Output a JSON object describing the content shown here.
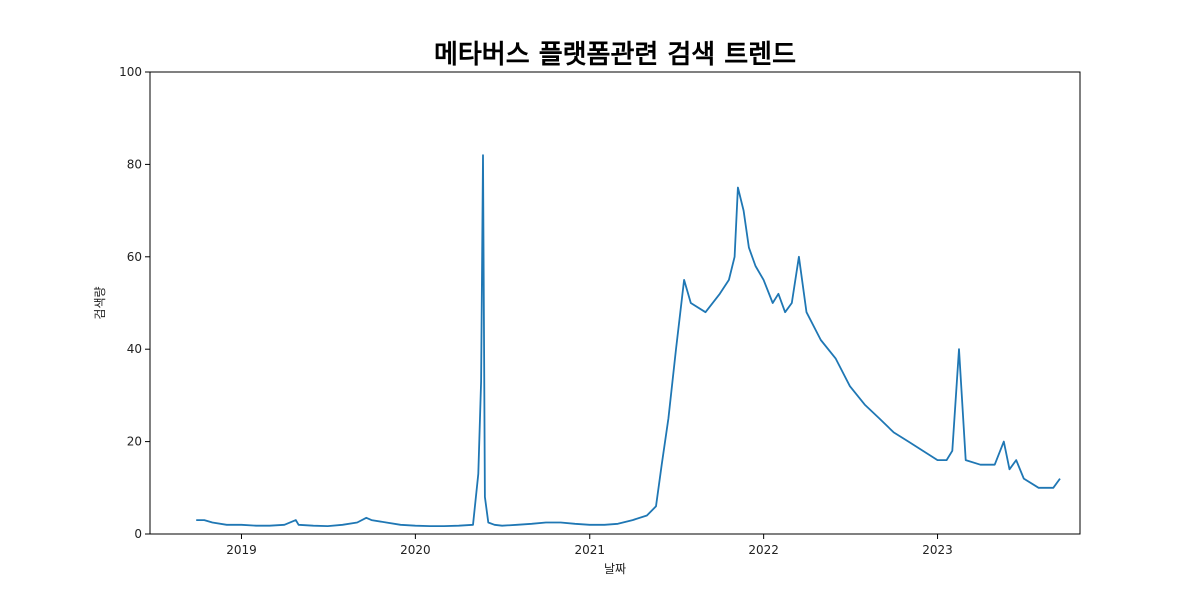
{
  "chart_data": {
    "type": "line",
    "title": "메타버스 플랫폼관련 검색 트렌드",
    "xlabel": "날짜",
    "ylabel": "검색량",
    "xlim": [
      "2018-06-23",
      "2023-10-27"
    ],
    "ylim": [
      0,
      100
    ],
    "x_ticks": [
      {
        "date": "2019-01-01",
        "label": "2019"
      },
      {
        "date": "2020-01-01",
        "label": "2020"
      },
      {
        "date": "2021-01-01",
        "label": "2021"
      },
      {
        "date": "2022-01-01",
        "label": "2022"
      },
      {
        "date": "2023-01-01",
        "label": "2023"
      }
    ],
    "y_ticks": [
      0,
      20,
      40,
      60,
      80,
      100
    ],
    "grid": false,
    "series": [
      {
        "color": "#1f77b4",
        "x": [
          "2018-09-28",
          "2018-10-15",
          "2018-11-01",
          "2018-12-01",
          "2019-01-01",
          "2019-02-01",
          "2019-03-01",
          "2019-04-01",
          "2019-04-25",
          "2019-05-01",
          "2019-06-01",
          "2019-07-01",
          "2019-08-01",
          "2019-09-01",
          "2019-09-20",
          "2019-10-01",
          "2019-11-01",
          "2019-12-01",
          "2020-01-01",
          "2020-02-01",
          "2020-03-01",
          "2020-04-01",
          "2020-05-01",
          "2020-05-12",
          "2020-05-18",
          "2020-05-22",
          "2020-05-26",
          "2020-06-02",
          "2020-06-15",
          "2020-07-01",
          "2020-08-01",
          "2020-09-01",
          "2020-10-01",
          "2020-11-01",
          "2020-12-01",
          "2021-01-01",
          "2021-02-01",
          "2021-03-01",
          "2021-04-01",
          "2021-05-01",
          "2021-05-20",
          "2021-06-01",
          "2021-06-15",
          "2021-07-01",
          "2021-07-18",
          "2021-08-01",
          "2021-09-01",
          "2021-10-01",
          "2021-10-20",
          "2021-11-01",
          "2021-11-08",
          "2021-11-20",
          "2021-12-01",
          "2021-12-15",
          "2022-01-01",
          "2022-01-20",
          "2022-02-01",
          "2022-02-15",
          "2022-03-01",
          "2022-03-16",
          "2022-04-01",
          "2022-05-01",
          "2022-06-01",
          "2022-07-01",
          "2022-08-01",
          "2022-09-01",
          "2022-10-01",
          "2022-11-01",
          "2022-12-01",
          "2023-01-01",
          "2023-01-20",
          "2023-02-01",
          "2023-02-15",
          "2023-03-01",
          "2023-04-01",
          "2023-05-01",
          "2023-05-20",
          "2023-06-01",
          "2023-06-15",
          "2023-07-01",
          "2023-08-01",
          "2023-09-01",
          "2023-09-15"
        ],
        "y": [
          3,
          3,
          2.5,
          2,
          2,
          1.8,
          1.8,
          2,
          3,
          2,
          1.8,
          1.7,
          2,
          2.5,
          3.5,
          3,
          2.5,
          2,
          1.8,
          1.7,
          1.7,
          1.8,
          2,
          13,
          33,
          82,
          8,
          2.5,
          2,
          1.8,
          2,
          2.2,
          2.5,
          2.5,
          2.2,
          2,
          2,
          2.2,
          3,
          4,
          6,
          15,
          25,
          40,
          55,
          50,
          48,
          52,
          55,
          60,
          75,
          70,
          62,
          58,
          55,
          50,
          52,
          48,
          50,
          60,
          48,
          42,
          38,
          32,
          28,
          25,
          22,
          20,
          18,
          16,
          16,
          18,
          40,
          16,
          15,
          15,
          20,
          14,
          16,
          12,
          10,
          10,
          12
        ]
      }
    ]
  }
}
